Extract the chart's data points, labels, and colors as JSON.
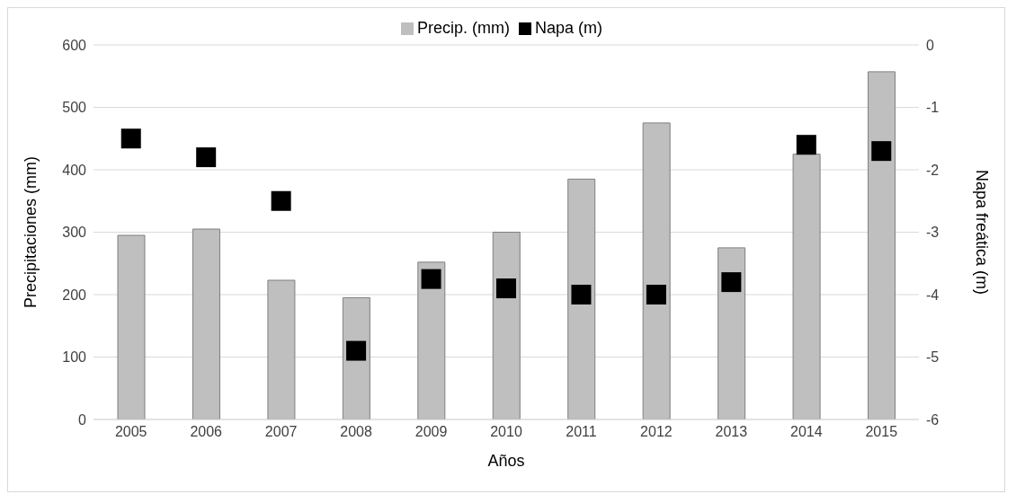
{
  "chart_data": {
    "type": "bar",
    "xlabel": "Años",
    "ylabel": "Precipitaciones (mm)",
    "y2label": "Napa freática (m)",
    "categories": [
      "2005",
      "2006",
      "2007",
      "2008",
      "2009",
      "2010",
      "2011",
      "2012",
      "2013",
      "2014",
      "2015"
    ],
    "series": [
      {
        "name": "Precip. (mm)",
        "color": "#bfbfbf",
        "values": [
          295,
          305,
          223,
          195,
          252,
          300,
          385,
          475,
          275,
          425,
          557
        ]
      },
      {
        "name": "Napa (m)",
        "type": "scatter",
        "axis": "y2",
        "color": "#000000",
        "values": [
          -1.5,
          -1.8,
          -2.5,
          -4.9,
          -3.75,
          -3.9,
          -4.0,
          -4.0,
          -3.8,
          -1.6,
          -1.7
        ]
      }
    ],
    "ylim": [
      0,
      600
    ],
    "yticks": [
      0,
      100,
      200,
      300,
      400,
      500,
      600
    ],
    "y2lim": [
      -6,
      0
    ],
    "y2ticks": [
      -6,
      -5,
      -4,
      -3,
      -2,
      -1,
      0
    ],
    "grid": "y",
    "legend": "top",
    "marker": "square"
  }
}
